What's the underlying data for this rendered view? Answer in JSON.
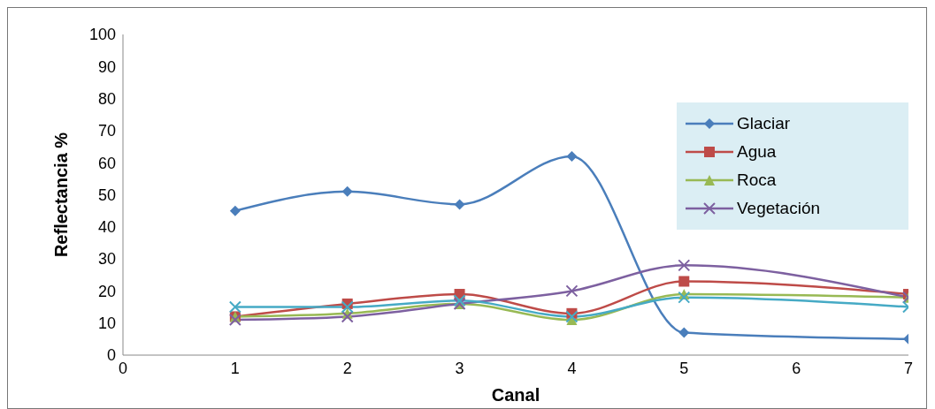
{
  "chart_data": {
    "type": "line",
    "xlabel": "Canal",
    "ylabel": "Reflectancia %",
    "x": [
      1,
      2,
      3,
      4,
      5,
      7
    ],
    "series": [
      {
        "name": "Glaciar",
        "color": "#4a7ebb",
        "marker": "diamond",
        "values": [
          45,
          51,
          47,
          62,
          7,
          5
        ]
      },
      {
        "name": "Agua",
        "color": "#be4b48",
        "marker": "square",
        "values": [
          12,
          16,
          19,
          13,
          23,
          19
        ]
      },
      {
        "name": "Roca",
        "color": "#98b954",
        "marker": "triangle",
        "values": [
          12,
          13,
          16,
          11,
          19,
          18
        ]
      },
      {
        "name": "Vegetación",
        "color": "#7d60a0",
        "marker": "cross",
        "values": [
          11,
          12,
          16,
          20,
          28,
          18
        ]
      },
      {
        "color": "#46aac5",
        "marker": "cross",
        "values": [
          15,
          15,
          17,
          12,
          18,
          15
        ]
      }
    ],
    "xlim": [
      0,
      7
    ],
    "xticks": [
      0,
      1,
      2,
      3,
      4,
      5,
      6,
      7
    ],
    "ylim": [
      0,
      100
    ],
    "yticks": [
      0,
      10,
      20,
      30,
      40,
      50,
      60,
      70,
      80,
      90,
      100
    ],
    "legend": "right",
    "line_style": "solid"
  }
}
